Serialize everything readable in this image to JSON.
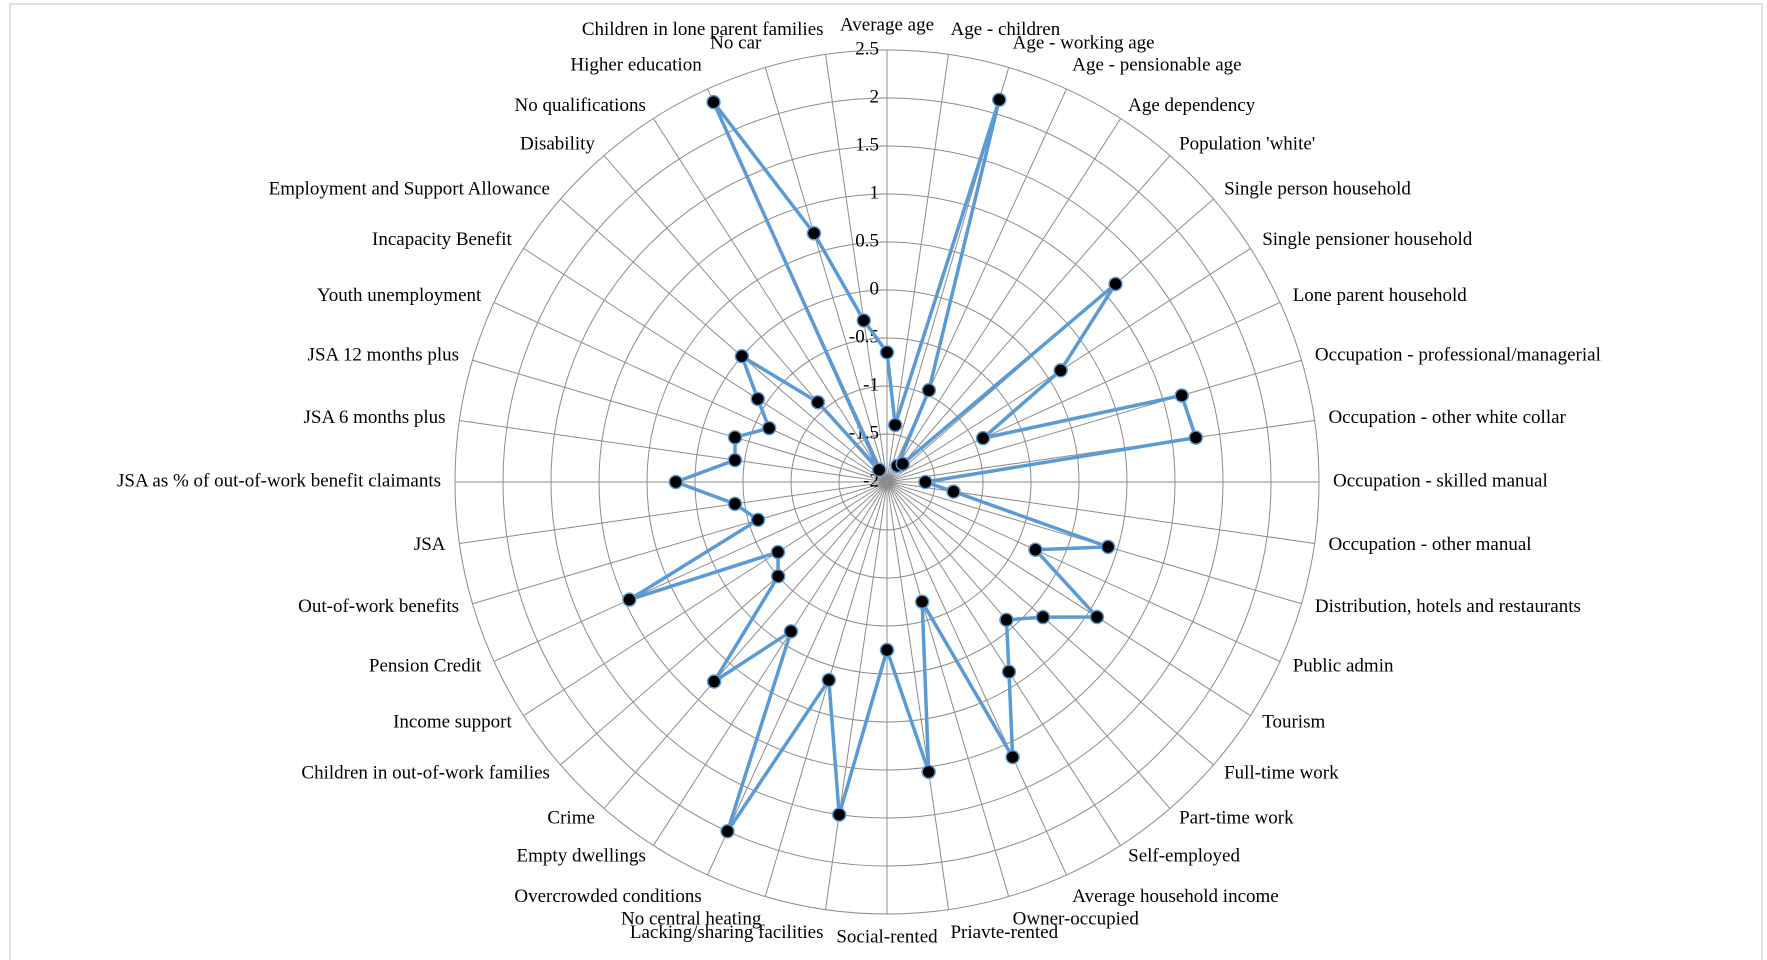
{
  "chart_data": {
    "type": "radar",
    "categories": [
      "Average age",
      "Age - children",
      "Age - working age",
      "Age - pensionable age",
      "Age dependency",
      "Population 'white'",
      "Single person household",
      "Single pensioner household",
      "Lone parent household",
      "Occupation - professional/managerial",
      "Occupation - other white collar",
      "Occupation - skilled manual",
      "Occupation - other manual",
      "Distribution, hotels and restaurants",
      "Public admin",
      "Tourism",
      "Full-time work",
      "Part-time work",
      "Self-employed",
      "Average household income",
      "Owner-occupied",
      "Priavte-rented",
      "Social-rented",
      "Lacking/sharing facilities",
      "No central heating",
      "Overcrowded conditions",
      "Empty dwellings",
      "Crime",
      "Children in out-of-work families",
      "Income support",
      "Pension Credit",
      "Out-of-work benefits",
      "JSA",
      "JSA as % of out-of-work benefit claimants",
      "JSA 6 months plus",
      "JSA 12 months plus",
      "Youth unemployment",
      "Incapacity Benefit",
      "Employment and Support Allowance",
      "Disability",
      "No qualifications",
      "Higher education",
      "No car",
      "Children in lone parent families"
    ],
    "values": [
      -0.65,
      -1.4,
      2.15,
      -0.95,
      -1.8,
      -1.75,
      1.15,
      0.15,
      -0.9,
      1.2,
      1.25,
      -1.6,
      -1.3,
      0.4,
      -0.3,
      0.6,
      0.15,
      -0.1,
      0.35,
      1.15,
      -0.7,
      1.05,
      -0.25,
      1.5,
      0.15,
      2.0,
      -0.15,
      0.75,
      -0.5,
      -0.65,
      0.95,
      -0.6,
      -0.4,
      0.2,
      -0.4,
      -0.35,
      -0.65,
      -0.4,
      0.0,
      -0.9,
      -1.85,
      2.35,
      0.7,
      -0.3
    ],
    "color": "#5b9bd5",
    "ylim": [
      -2,
      2.5
    ],
    "yticks": [
      -2,
      -1.5,
      -1,
      -0.5,
      0,
      0.5,
      1,
      1.5,
      2,
      2.5
    ],
    "grid": true
  }
}
